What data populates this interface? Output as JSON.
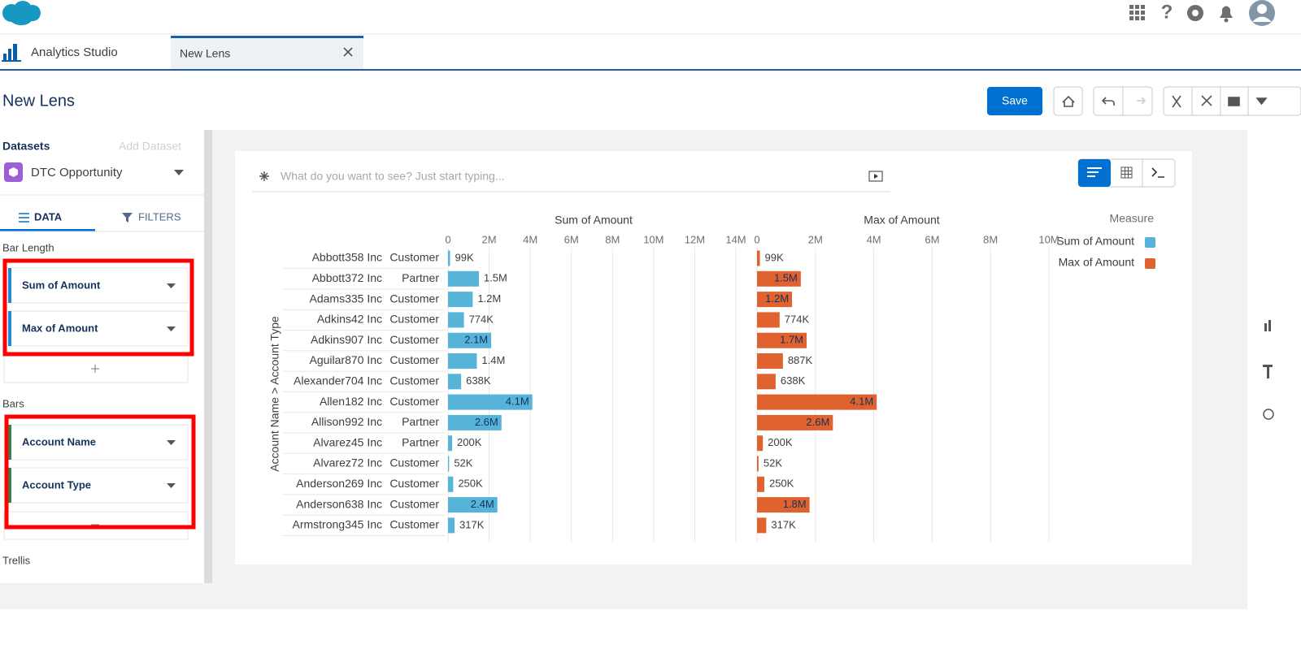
{
  "header": {
    "app_name": "Analytics Studio",
    "tab_title": "New Lens",
    "help": "?"
  },
  "toolbar": {
    "title": "New Lens",
    "save": "Save"
  },
  "sidebar": {
    "datasets_label": "Datasets",
    "add_dataset": "Add Dataset",
    "dataset": "DTC Opportunity",
    "tabs": [
      "DATA",
      "FILTERS"
    ],
    "sections": [
      {
        "title": "Bar Length",
        "fields": [
          "Sum of Amount",
          "Max of Amount"
        ]
      },
      {
        "title": "Bars",
        "fields": [
          "Account Name",
          "Account Type"
        ]
      },
      {
        "title": "Trellis"
      }
    ]
  },
  "search": {
    "placeholder": "What do you want to see? Just start typing..."
  },
  "chart_data": {
    "type": "bar",
    "orientation": "horizontal",
    "y_label": "Account Name > Account Type",
    "legend_title": "Measure",
    "legend": "right",
    "grid": true,
    "categories": [
      "Abbott358 Inc",
      "Abbott372 Inc",
      "Adams335 Inc",
      "Adkins42 Inc",
      "Adkins907 Inc",
      "Aguilar870 Inc",
      "Alexander704 Inc",
      "Allen182 Inc",
      "Allison992 Inc",
      "Alvarez45 Inc",
      "Alvarez72 Inc",
      "Anderson269 Inc",
      "Anderson638 Inc",
      "Armstrong345 Inc"
    ],
    "category_types": [
      "Customer",
      "Partner",
      "Customer",
      "Customer",
      "Customer",
      "Customer",
      "Customer",
      "Customer",
      "Partner",
      "Partner",
      "Customer",
      "Customer",
      "Customer",
      "Customer"
    ],
    "series": [
      {
        "name": "Sum of Amount",
        "color": "#56b4d9",
        "values": [
          99000,
          1500000,
          1200000,
          774000,
          2100000,
          1400000,
          638000,
          4100000,
          2600000,
          200000,
          52000,
          250000,
          2400000,
          317000
        ],
        "value_labels": [
          "99K",
          "1.5M",
          "1.2M",
          "774K",
          "2.1M",
          "1.4M",
          "638K",
          "4.1M",
          "2.6M",
          "200K",
          "52K",
          "250K",
          "2.4M",
          "317K"
        ],
        "xlim": [
          0,
          14000000
        ],
        "xticks": [
          0,
          {
            "value": 2000000,
            "label": "2M"
          },
          {
            "value": 4000000,
            "label": "4M"
          },
          {
            "value": 6000000,
            "label": "6M"
          },
          {
            "value": 8000000,
            "label": "8M"
          },
          {
            "value": 10000000,
            "label": "10M"
          },
          {
            "value": 12000000,
            "label": "12M"
          },
          {
            "value": 14000000,
            "label": "14M"
          }
        ]
      },
      {
        "name": "Max of Amount",
        "color": "#e0622f",
        "values": [
          99000,
          1500000,
          1200000,
          774000,
          1700000,
          887000,
          638000,
          4100000,
          2600000,
          200000,
          52000,
          250000,
          1800000,
          317000
        ],
        "value_labels": [
          "99K",
          "1.5M",
          "1.2M",
          "774K",
          "1.7M",
          "887K",
          "638K",
          "4.1M",
          "2.6M",
          "200K",
          "52K",
          "250K",
          "1.8M",
          "317K"
        ],
        "xlim": [
          0,
          10000000
        ],
        "xticks": [
          0,
          {
            "value": 2000000,
            "label": "2M"
          },
          {
            "value": 4000000,
            "label": "4M"
          },
          {
            "value": 6000000,
            "label": "6M"
          },
          {
            "value": 8000000,
            "label": "8M"
          },
          {
            "value": 10000000,
            "label": "10M"
          }
        ]
      }
    ]
  }
}
